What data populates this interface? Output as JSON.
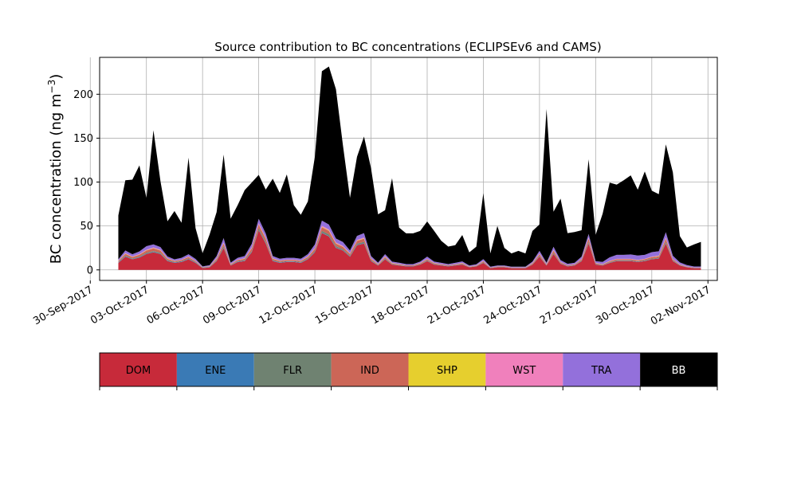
{
  "chart_data": {
    "type": "area",
    "title": "Source contribution to BC concentrations (ECLIPSEv6 and CAMS)",
    "ylabel": "BC concentration (ng m⁻³)",
    "ylabel_main": "BC concentration (ng m",
    "ylabel_sup": "−3",
    "ylabel_close": ")",
    "xlabel": "",
    "stacked": true,
    "grid": true,
    "x_unit": "date",
    "xlim": [
      "2017-09-30T12:00",
      "2017-11-02T12:00"
    ],
    "ylim": [
      -12,
      242
    ],
    "y_ticks": [
      0,
      50,
      100,
      150,
      200
    ],
    "x_ticks": [
      "30-Sep-2017",
      "03-Oct-2017",
      "06-Oct-2017",
      "09-Oct-2017",
      "12-Oct-2017",
      "15-Oct-2017",
      "18-Oct-2017",
      "21-Oct-2017",
      "24-Oct-2017",
      "27-Oct-2017",
      "30-Oct-2017",
      "02-Nov-2017"
    ],
    "x": [
      "2017-10-01T12:00",
      "2017-10-01T21:00",
      "2017-10-02T06:00",
      "2017-10-02T15:00",
      "2017-10-03T00:00",
      "2017-10-03T09:00",
      "2017-10-03T18:00",
      "2017-10-04T03:00",
      "2017-10-04T12:00",
      "2017-10-04T21:00",
      "2017-10-05T06:00",
      "2017-10-05T15:00",
      "2017-10-06T00:00",
      "2017-10-06T09:00",
      "2017-10-06T18:00",
      "2017-10-07T03:00",
      "2017-10-07T12:00",
      "2017-10-07T21:00",
      "2017-10-08T06:00",
      "2017-10-08T15:00",
      "2017-10-09T00:00",
      "2017-10-09T09:00",
      "2017-10-09T18:00",
      "2017-10-10T03:00",
      "2017-10-10T12:00",
      "2017-10-10T21:00",
      "2017-10-11T06:00",
      "2017-10-11T15:00",
      "2017-10-12T00:00",
      "2017-10-12T09:00",
      "2017-10-12T18:00",
      "2017-10-13T03:00",
      "2017-10-13T12:00",
      "2017-10-13T21:00",
      "2017-10-14T06:00",
      "2017-10-14T15:00",
      "2017-10-15T00:00",
      "2017-10-15T09:00",
      "2017-10-15T18:00",
      "2017-10-16T03:00",
      "2017-10-16T12:00",
      "2017-10-16T21:00",
      "2017-10-17T06:00",
      "2017-10-17T15:00",
      "2017-10-18T00:00",
      "2017-10-18T09:00",
      "2017-10-18T18:00",
      "2017-10-19T03:00",
      "2017-10-19T12:00",
      "2017-10-19T21:00",
      "2017-10-20T06:00",
      "2017-10-20T15:00",
      "2017-10-21T00:00",
      "2017-10-21T09:00",
      "2017-10-21T18:00",
      "2017-10-22T03:00",
      "2017-10-22T12:00",
      "2017-10-22T21:00",
      "2017-10-23T06:00",
      "2017-10-23T15:00",
      "2017-10-24T00:00",
      "2017-10-24T09:00",
      "2017-10-24T18:00",
      "2017-10-25T03:00",
      "2017-10-25T12:00",
      "2017-10-25T21:00",
      "2017-10-26T06:00",
      "2017-10-26T15:00",
      "2017-10-27T00:00",
      "2017-10-27T09:00",
      "2017-10-27T18:00",
      "2017-10-28T03:00",
      "2017-10-28T12:00",
      "2017-10-28T21:00",
      "2017-10-29T06:00",
      "2017-10-29T15:00",
      "2017-10-30T00:00",
      "2017-10-30T09:00",
      "2017-10-30T18:00",
      "2017-10-31T03:00",
      "2017-10-31T12:00",
      "2017-10-31T21:00",
      "2017-11-01T06:00",
      "2017-11-01T15:00"
    ],
    "series": [
      {
        "name": "DOM",
        "color": "#c72a3a",
        "values": [
          8,
          15,
          12,
          14,
          18,
          20,
          18,
          10,
          8,
          9,
          12,
          8,
          2,
          3,
          10,
          25,
          5,
          9,
          10,
          20,
          45,
          30,
          10,
          8,
          9,
          9,
          8,
          12,
          20,
          42,
          38,
          25,
          22,
          15,
          28,
          30,
          10,
          5,
          12,
          6,
          5,
          4,
          4,
          6,
          10,
          6,
          5,
          4,
          5,
          6,
          3,
          4,
          8,
          2,
          3,
          3,
          2,
          2,
          2,
          6,
          15,
          5,
          18,
          7,
          4,
          5,
          10,
          30,
          6,
          5,
          8,
          10,
          10,
          10,
          9,
          10,
          12,
          13,
          30,
          10,
          5,
          3,
          2,
          2
        ]
      },
      {
        "name": "ENE",
        "color": "#3a7ab5",
        "values": [
          0.5,
          0.5,
          0.5,
          0.5,
          0.5,
          0.5,
          0.5,
          0.5,
          0.5,
          0.5,
          0.5,
          0.5,
          0.3,
          0.3,
          0.5,
          0.5,
          0.3,
          0.5,
          0.5,
          0.5,
          0.5,
          0.5,
          0.5,
          0.5,
          0.5,
          0.5,
          0.5,
          0.5,
          0.5,
          0.5,
          0.5,
          0.5,
          0.5,
          0.5,
          0.5,
          0.5,
          0.5,
          0.3,
          0.5,
          0.3,
          0.3,
          0.3,
          0.3,
          0.3,
          0.3,
          0.3,
          0.3,
          0.3,
          0.3,
          0.3,
          0.2,
          0.2,
          0.3,
          0.2,
          0.2,
          0.2,
          0.2,
          0.2,
          0.2,
          0.3,
          0.3,
          0.3,
          0.3,
          0.3,
          0.3,
          0.3,
          0.3,
          0.5,
          0.3,
          0.3,
          0.3,
          0.3,
          0.3,
          0.3,
          0.3,
          0.3,
          0.3,
          0.3,
          0.5,
          0.3,
          0.3,
          0.2,
          0.2,
          0.2
        ]
      },
      {
        "name": "FLR",
        "color": "#6f8271",
        "values": [
          0.5,
          0.8,
          0.6,
          0.7,
          1,
          1,
          1,
          0.6,
          0.5,
          0.5,
          0.6,
          0.5,
          0.3,
          0.3,
          0.6,
          1.5,
          0.3,
          0.5,
          0.6,
          1,
          2,
          1.5,
          0.6,
          0.5,
          0.5,
          0.5,
          0.5,
          0.7,
          1,
          2,
          2,
          1.5,
          1.2,
          0.8,
          1.5,
          1.5,
          0.6,
          0.3,
          0.7,
          0.4,
          0.3,
          0.3,
          0.3,
          0.4,
          0.6,
          0.4,
          0.3,
          0.3,
          0.3,
          0.4,
          0.2,
          0.3,
          0.5,
          0.2,
          0.2,
          0.2,
          0.2,
          0.2,
          0.2,
          0.4,
          0.8,
          0.3,
          1,
          0.4,
          0.3,
          0.3,
          0.6,
          1.5,
          0.4,
          0.3,
          0.5,
          0.6,
          0.6,
          0.6,
          0.5,
          0.6,
          0.7,
          0.7,
          1.5,
          0.6,
          0.3,
          0.2,
          0.2,
          0.2
        ]
      },
      {
        "name": "IND",
        "color": "#cc6657",
        "values": [
          1,
          2,
          1.5,
          2,
          2.5,
          3,
          2.5,
          1.5,
          1,
          1.2,
          1.5,
          1,
          0.4,
          0.5,
          1.5,
          3,
          0.8,
          1.2,
          1.5,
          3,
          4,
          3.5,
          1.5,
          1.2,
          1.2,
          1.2,
          1.2,
          1.5,
          2.5,
          4,
          4,
          3,
          2.5,
          2,
          3,
          3.5,
          1.5,
          0.8,
          1.5,
          0.8,
          0.7,
          0.6,
          0.6,
          0.8,
          1.2,
          0.8,
          0.7,
          0.6,
          0.7,
          0.8,
          0.4,
          0.5,
          1,
          0.3,
          0.4,
          0.4,
          0.3,
          0.3,
          0.3,
          0.8,
          1.8,
          0.7,
          2.5,
          1,
          0.6,
          0.7,
          1.2,
          3.5,
          0.8,
          0.7,
          1,
          1.2,
          1.2,
          1.2,
          1,
          1.2,
          1.5,
          1.5,
          3.5,
          1.2,
          0.6,
          0.4,
          0.3,
          0.3
        ]
      },
      {
        "name": "SHP",
        "color": "#e6cf2e",
        "values": [
          0.2,
          0.3,
          0.3,
          0.3,
          0.4,
          0.4,
          0.4,
          0.3,
          0.2,
          0.2,
          0.3,
          0.2,
          0.1,
          0.1,
          0.3,
          0.4,
          0.2,
          0.2,
          0.3,
          0.4,
          0.5,
          0.5,
          0.3,
          0.2,
          0.2,
          0.2,
          0.2,
          0.3,
          0.4,
          0.5,
          0.5,
          0.4,
          0.4,
          0.3,
          0.4,
          0.5,
          0.3,
          0.2,
          0.3,
          0.2,
          0.2,
          0.1,
          0.1,
          0.2,
          0.2,
          0.2,
          0.1,
          0.1,
          0.1,
          0.2,
          0.1,
          0.1,
          0.2,
          0.1,
          0.1,
          0.1,
          0.1,
          0.1,
          0.1,
          0.2,
          0.3,
          0.2,
          0.4,
          0.2,
          0.1,
          0.1,
          0.2,
          0.5,
          0.2,
          0.1,
          0.2,
          0.2,
          0.2,
          0.2,
          0.2,
          0.2,
          0.3,
          0.3,
          0.5,
          0.2,
          0.1,
          0.1,
          0.1,
          0.1
        ]
      },
      {
        "name": "WST",
        "color": "#f080bc",
        "values": [
          0.3,
          0.5,
          0.4,
          0.5,
          0.6,
          0.6,
          0.6,
          0.4,
          0.3,
          0.3,
          0.4,
          0.3,
          0.1,
          0.1,
          0.4,
          0.8,
          0.2,
          0.3,
          0.4,
          0.6,
          1.2,
          0.9,
          0.4,
          0.3,
          0.3,
          0.3,
          0.3,
          0.4,
          0.6,
          1.2,
          1.1,
          0.8,
          0.7,
          0.5,
          0.8,
          0.9,
          0.4,
          0.2,
          0.4,
          0.2,
          0.2,
          0.1,
          0.1,
          0.2,
          0.3,
          0.2,
          0.2,
          0.1,
          0.2,
          0.2,
          0.1,
          0.1,
          0.3,
          0.1,
          0.1,
          0.1,
          0.1,
          0.1,
          0.1,
          0.2,
          0.5,
          0.2,
          0.6,
          0.2,
          0.1,
          0.2,
          0.3,
          0.9,
          0.2,
          0.2,
          0.3,
          0.3,
          0.3,
          0.3,
          0.3,
          0.3,
          0.4,
          0.4,
          0.9,
          0.3,
          0.2,
          0.1,
          0.1,
          0.1
        ]
      },
      {
        "name": "TRA",
        "color": "#9370db",
        "values": [
          1.5,
          3,
          2.5,
          3,
          4,
          3.5,
          3,
          2,
          1.5,
          2,
          2.5,
          2,
          0.8,
          1,
          2.5,
          5,
          1.5,
          2,
          2.5,
          4,
          5,
          4.5,
          2.5,
          2,
          2,
          2,
          2,
          2.5,
          4,
          6,
          5.5,
          4.5,
          4.5,
          3,
          4.5,
          5,
          2.5,
          1.5,
          2.5,
          1.5,
          1.5,
          1.2,
          1.2,
          1.5,
          2.5,
          1.5,
          1.5,
          1.2,
          1.5,
          1.8,
          1,
          1.2,
          2,
          0.8,
          1,
          1,
          0.8,
          0.8,
          0.8,
          1.5,
          3,
          1.5,
          3.5,
          2,
          1.5,
          1.5,
          2.5,
          4,
          2,
          2.5,
          4,
          4.5,
          4.5,
          5,
          5,
          4.5,
          5,
          5,
          6,
          3.5,
          2,
          1.5,
          1,
          1
        ]
      },
      {
        "name": "BB",
        "color": "#000000",
        "values": [
          50,
          80,
          85,
          98,
          55,
          130,
          75,
          40,
          55,
          40,
          110,
          35,
          15,
          35,
          50,
          95,
          50,
          60,
          75,
          70,
          50,
          50,
          88,
          75,
          95,
          60,
          50,
          60,
          100,
          170,
          180,
          170,
          110,
          60,
          90,
          110,
          100,
          55,
          50,
          95,
          40,
          35,
          35,
          35,
          40,
          35,
          25,
          20,
          20,
          30,
          15,
          20,
          75,
          15,
          45,
          20,
          15,
          18,
          15,
          35,
          30,
          175,
          40,
          70,
          35,
          35,
          30,
          85,
          30,
          55,
          85,
          80,
          85,
          90,
          75,
          95,
          70,
          65,
          100,
          95,
          30,
          20,
          25,
          28
        ]
      }
    ],
    "legend": {
      "placement": "bottom",
      "items": [
        "DOM",
        "ENE",
        "FLR",
        "IND",
        "SHP",
        "WST",
        "TRA",
        "BB"
      ]
    }
  }
}
